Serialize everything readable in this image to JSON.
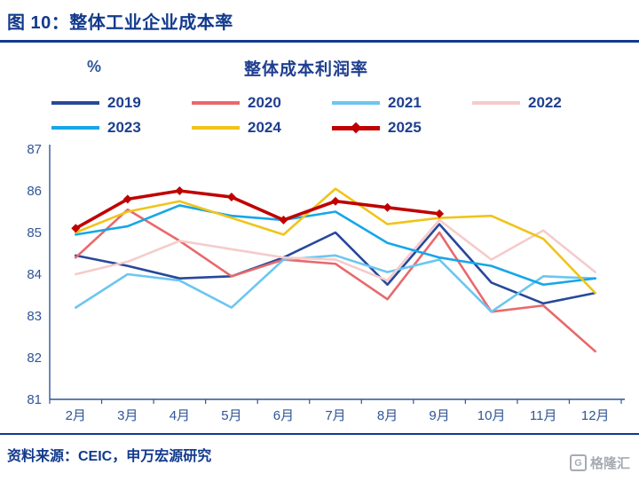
{
  "header": {
    "title": "图 10：整体工业企业成本率"
  },
  "footer": {
    "source": "资料来源：CEIC，申万宏源研究"
  },
  "watermark": {
    "logo_text": "格隆汇",
    "logo_letter": "G"
  },
  "colors": {
    "primary": "#123A8C",
    "axis": "#2F5597"
  },
  "chart_data": {
    "type": "line",
    "title": "整体成本利润率",
    "unit_label": "%",
    "xlabel": "",
    "ylabel": "%",
    "ylim": [
      81,
      87
    ],
    "yticks": [
      81,
      82,
      83,
      84,
      85,
      86,
      87
    ],
    "grid": false,
    "legend_position": "top",
    "axis_color": "#2F5597",
    "categories": [
      "2月",
      "3月",
      "4月",
      "5月",
      "6月",
      "7月",
      "8月",
      "9月",
      "10月",
      "11月",
      "12月"
    ],
    "series": [
      {
        "name": "2019",
        "color": "#27489B",
        "values": [
          84.45,
          84.2,
          83.9,
          83.95,
          84.4,
          85.0,
          83.75,
          85.2,
          83.8,
          83.3,
          83.55
        ]
      },
      {
        "name": "2020",
        "color": "#E8696B",
        "values": [
          84.4,
          85.55,
          84.8,
          83.95,
          84.35,
          84.25,
          83.4,
          85.0,
          83.1,
          83.25,
          82.15
        ]
      },
      {
        "name": "2021",
        "color": "#6CC6F0",
        "values": [
          83.2,
          84.0,
          83.85,
          83.2,
          84.35,
          84.45,
          84.05,
          84.35,
          83.1,
          83.95,
          83.9
        ]
      },
      {
        "name": "2022",
        "color": "#F6CBCB",
        "values": [
          84.0,
          84.3,
          84.8,
          84.6,
          84.4,
          84.35,
          83.85,
          85.3,
          84.35,
          85.05,
          84.05
        ]
      },
      {
        "name": "2023",
        "color": "#16A6E8",
        "values": [
          84.95,
          85.15,
          85.65,
          85.4,
          85.3,
          85.5,
          84.75,
          84.4,
          84.2,
          83.75,
          83.9
        ]
      },
      {
        "name": "2024",
        "color": "#F0C419",
        "values": [
          85.0,
          85.5,
          85.75,
          85.35,
          84.95,
          86.05,
          85.2,
          85.35,
          85.4,
          84.85,
          83.55
        ]
      },
      {
        "name": "2025",
        "color": "#C00000",
        "marker": "diamond",
        "thick": true,
        "values": [
          85.1,
          85.8,
          86.0,
          85.85,
          85.3,
          85.75,
          85.6,
          85.45
        ]
      }
    ]
  }
}
